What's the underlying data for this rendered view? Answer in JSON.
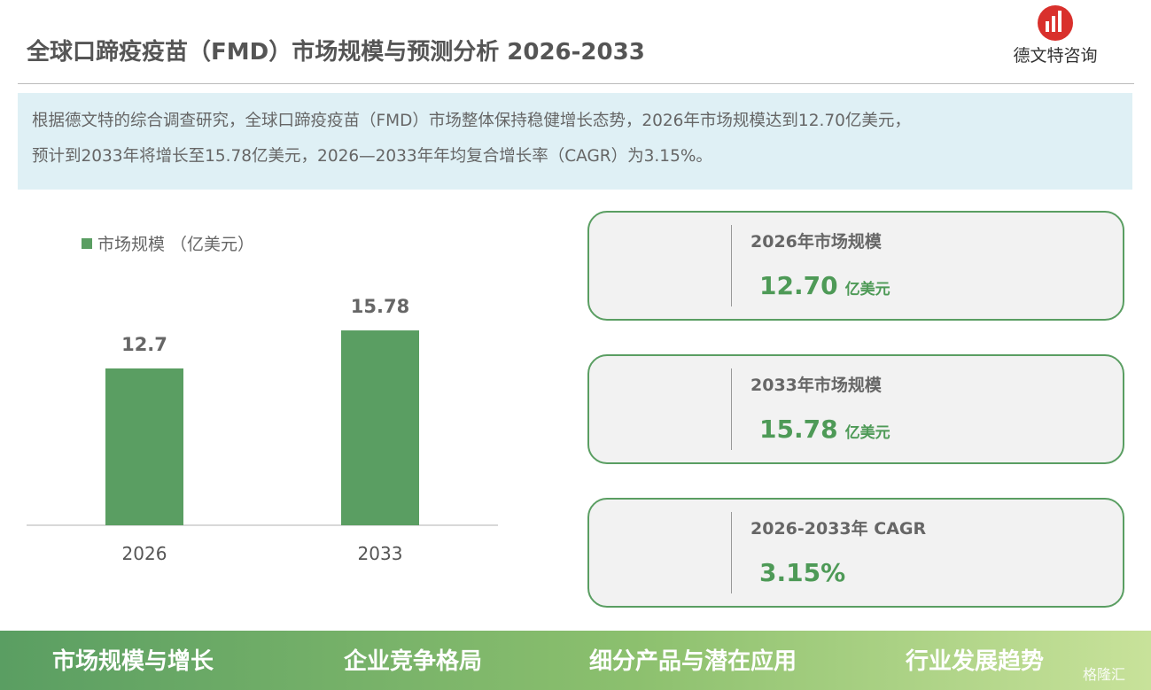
{
  "header": {
    "title": "全球口蹄疫疫苗（FMD）市场规模与预测分析 2026-2033",
    "logo_text": "德文特咨询"
  },
  "summary": [
    "根据德文特的综合调查研究，全球口蹄疫疫苗（FMD）市场整体保持稳健增长态势，2026年市场规模达到12.70亿美元，",
    "预计到2033年将增长至15.78亿美元，2026—2033年年均复合增长率（CAGR）为3.15%。"
  ],
  "chart_data": {
    "type": "bar",
    "categories": [
      "2026",
      "2033"
    ],
    "series": [
      {
        "name": "市场规模 （亿美元）",
        "color": "#5a9e62",
        "values": [
          12.7,
          15.78
        ]
      }
    ]
  },
  "cards": [
    {
      "title": "2026年市场规模",
      "value": "12.70",
      "unit": "亿美元"
    },
    {
      "title": "2033年市场规模",
      "value": "15.78",
      "unit": "亿美元"
    },
    {
      "title": "2026-2033年 CAGR",
      "value": "3.15%"
    }
  ],
  "footer_tabs": [
    "市场规模与增长",
    "企业竞争格局",
    "细分产品与潜在应用",
    "行业发展趋势"
  ],
  "watermark": "格隆汇"
}
